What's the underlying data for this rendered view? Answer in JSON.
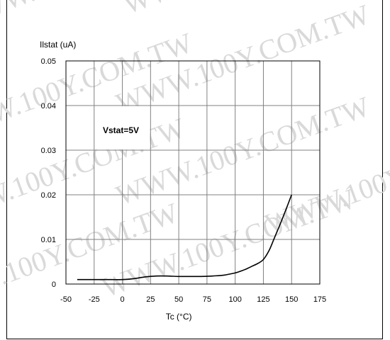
{
  "chart_data": {
    "type": "line",
    "ylabel": "Ilstat (uA)",
    "xlabel": "Tc (°C)",
    "xlim": [
      -50,
      175
    ],
    "ylim": [
      0,
      0.05
    ],
    "x_ticks": [
      -50,
      -25,
      0,
      25,
      50,
      75,
      100,
      125,
      150,
      175
    ],
    "y_ticks": [
      0,
      0.01,
      0.02,
      0.03,
      0.04,
      0.05
    ],
    "x_tick_labels": [
      "-50",
      "-25",
      "0",
      "25",
      "50",
      "75",
      "100",
      "125",
      "150",
      "175"
    ],
    "y_tick_labels": [
      "0",
      "0.01",
      "0.02",
      "0.03",
      "0.04",
      "0.05"
    ],
    "grid": true,
    "annotation": "Vstat=5V",
    "series": [
      {
        "x": [
          -40,
          -25,
          -10,
          0,
          10,
          20,
          30,
          40,
          50,
          60,
          70,
          80,
          90,
          100,
          105,
          110,
          115,
          120,
          125,
          130,
          135,
          140,
          145,
          150
        ],
        "y": [
          0.001,
          0.001,
          0.001,
          0.001,
          0.0012,
          0.0016,
          0.0018,
          0.0018,
          0.0017,
          0.0017,
          0.0017,
          0.0018,
          0.002,
          0.0025,
          0.0029,
          0.0034,
          0.004,
          0.0046,
          0.0055,
          0.0075,
          0.0105,
          0.0135,
          0.0167,
          0.02
        ]
      }
    ],
    "line_color": "#000000"
  },
  "watermark": "WWW.100Y.COM.TW"
}
